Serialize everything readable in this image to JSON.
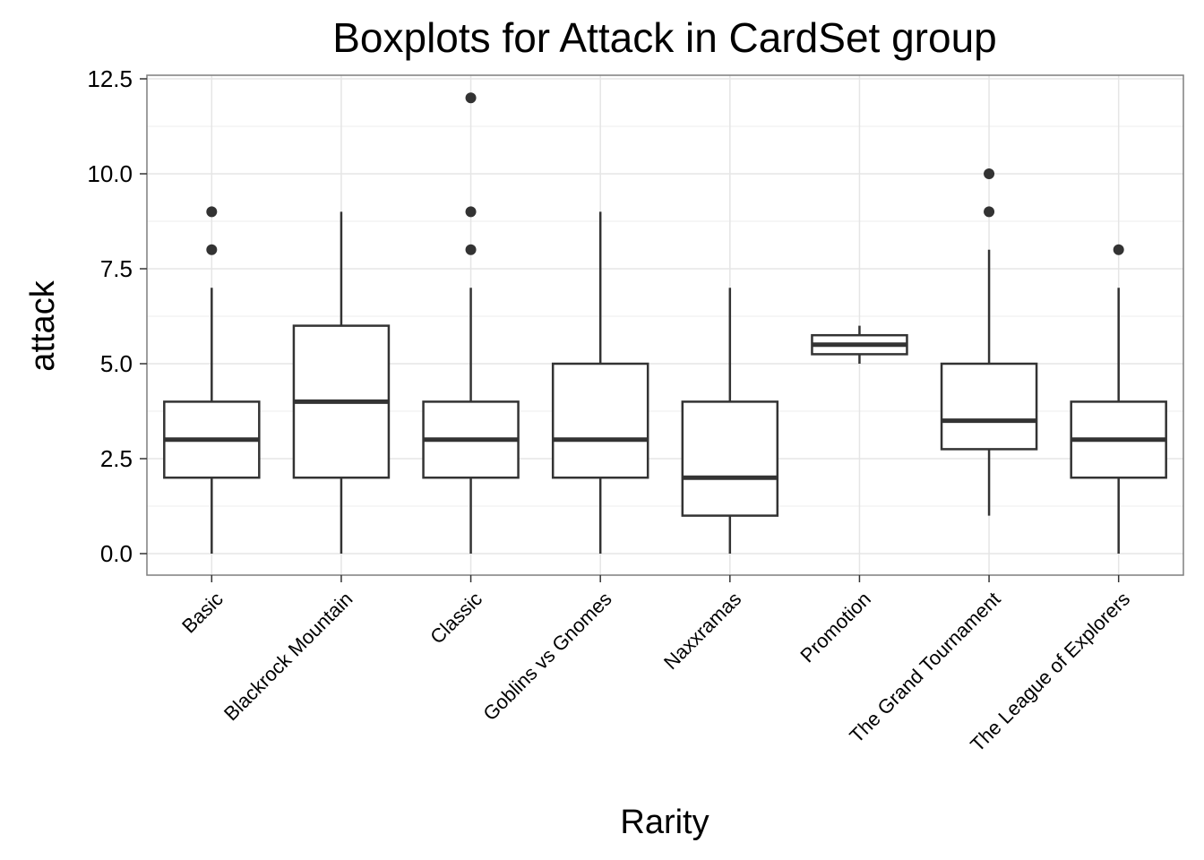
{
  "chart_data": {
    "type": "boxplot",
    "title": "Boxplots for Attack in CardSet group",
    "xlabel": "Rarity",
    "ylabel": "attack",
    "ylim": [
      -0.6,
      12.5
    ],
    "yticks": [
      "0.0",
      "2.5",
      "5.0",
      "7.5",
      "10.0",
      "12.5"
    ],
    "ytick_values": [
      0,
      2.5,
      5,
      7.5,
      10,
      12.5
    ],
    "grid": true,
    "categories": [
      "Basic",
      "Blackrock Mountain",
      "Classic",
      "Goblins vs Gnomes",
      "Naxxramas",
      "Promotion",
      "The Grand Tournament",
      "The League of Explorers"
    ],
    "boxes": [
      {
        "category": "Basic",
        "min": 0,
        "q1": 2,
        "median": 3,
        "q3": 4,
        "max": 7,
        "outliers": [
          8,
          9
        ]
      },
      {
        "category": "Blackrock Mountain",
        "min": 0,
        "q1": 2,
        "median": 4,
        "q3": 6,
        "max": 9,
        "outliers": []
      },
      {
        "category": "Classic",
        "min": 0,
        "q1": 2,
        "median": 3,
        "q3": 4,
        "max": 7,
        "outliers": [
          8,
          9,
          12
        ]
      },
      {
        "category": "Goblins vs Gnomes",
        "min": 0,
        "q1": 2,
        "median": 3,
        "q3": 5,
        "max": 9,
        "outliers": []
      },
      {
        "category": "Naxxramas",
        "min": 0,
        "q1": 1,
        "median": 2,
        "q3": 4,
        "max": 7,
        "outliers": []
      },
      {
        "category": "Promotion",
        "min": 5,
        "q1": 5.25,
        "median": 5.5,
        "q3": 5.75,
        "max": 6,
        "outliers": []
      },
      {
        "category": "The Grand Tournament",
        "min": 1,
        "q1": 2.75,
        "median": 3.5,
        "q3": 5,
        "max": 8,
        "outliers": [
          9,
          10
        ]
      },
      {
        "category": "The League of Explorers",
        "min": 0,
        "q1": 2,
        "median": 3,
        "q3": 4,
        "max": 7,
        "outliers": [
          8
        ]
      }
    ],
    "colors": {
      "box_line": "#333333",
      "panel_border": "#7f7f7f",
      "grid_major": "#e5e5e5",
      "grid_minor": "#f3f3f3"
    }
  }
}
